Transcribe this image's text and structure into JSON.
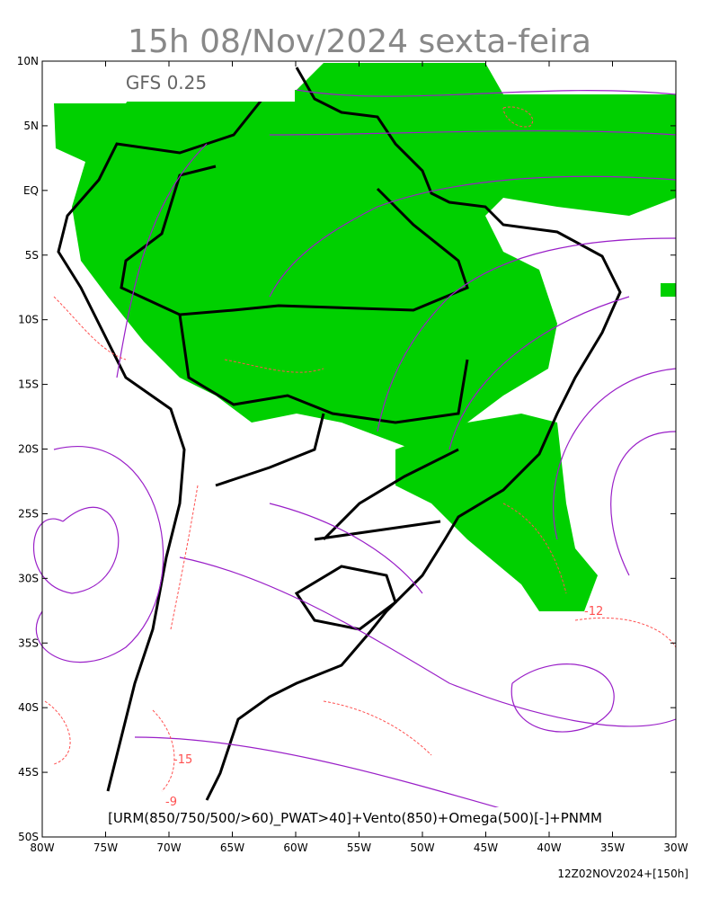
{
  "title": "15h 08/Nov/2024 sexta-feira",
  "model": "GFS 0.25",
  "lat_labels": [
    "10N",
    "5N",
    "EQ",
    "5S",
    "10S",
    "15S",
    "20S",
    "25S",
    "30S",
    "35S",
    "40S",
    "45S",
    "50S"
  ],
  "lon_labels": [
    "80W",
    "75W",
    "70W",
    "65W",
    "60W",
    "55W",
    "50W",
    "45W",
    "40W",
    "35W",
    "30W"
  ],
  "contour_labels": [
    "-12",
    "-15",
    "-9"
  ],
  "legend": "[URM(850/750/500/>60)_PWAT>40]+Vento(850)+Omega(500)[-]+PNMM",
  "footer": "12Z02NOV2024+[150h]"
}
